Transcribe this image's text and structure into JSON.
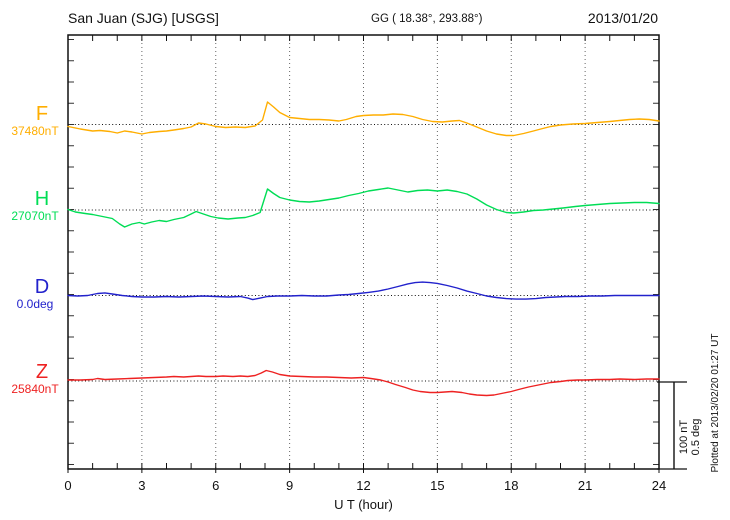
{
  "header": {
    "station_title": "San Juan (SJG)  [USGS]",
    "coordinates": "GG ( 18.38°, 293.88°)",
    "date": "2013/01/20"
  },
  "side": {
    "plotted_at": "Plotted at 2013/02/20 01:27 UT",
    "scale_bar": {
      "nt_label": "100 nT",
      "deg_label": "0.5 deg"
    }
  },
  "channels": [
    {
      "letter": "F",
      "value_label": "37480nT",
      "color": "#FFAE00"
    },
    {
      "letter": "H",
      "value_label": "27070nT",
      "color": "#00DD55"
    },
    {
      "letter": "D",
      "value_label": "0.0deg",
      "color": "#2222CC"
    },
    {
      "letter": "Z",
      "value_label": "25840nT",
      "color": "#EE2222"
    }
  ],
  "chart_data": {
    "type": "line",
    "title": "San Juan (SJG) [USGS] magnetogram 2013/01/20",
    "xlabel": "U T (hour)",
    "x_range": [
      0,
      24
    ],
    "x_ticks": [
      0,
      3,
      6,
      9,
      12,
      15,
      18,
      21,
      24
    ],
    "x_minor_tick_every_hours": 1,
    "y_minor_tick_nT": 25,
    "grid": "dotted vertical gridlines every 3 hours; dotted horizontal baseline per channel",
    "scale_division": {
      "nT": 100,
      "deg": 0.5
    },
    "series": [
      {
        "name": "F",
        "unit": "nT",
        "baseline_value": 37480,
        "color": "#FFAE00",
        "points": [
          [
            0,
            -2.4
          ],
          [
            0.5,
            -5.3
          ],
          [
            1,
            -7.6
          ],
          [
            1.3,
            -7.1
          ],
          [
            1.7,
            -8.2
          ],
          [
            2,
            -10
          ],
          [
            2.3,
            -7.6
          ],
          [
            2.6,
            -8.8
          ],
          [
            3,
            -11.2
          ],
          [
            3.3,
            -9.4
          ],
          [
            3.7,
            -8.2
          ],
          [
            4,
            -7.6
          ],
          [
            4.3,
            -6.5
          ],
          [
            4.7,
            -4.7
          ],
          [
            5,
            -2.9
          ],
          [
            5.3,
            1.8
          ],
          [
            5.6,
            0.6
          ],
          [
            6,
            -2.4
          ],
          [
            6.4,
            -3.5
          ],
          [
            6.8,
            -2.9
          ],
          [
            7.2,
            -3.5
          ],
          [
            7.6,
            -1.8
          ],
          [
            7.9,
            5.3
          ],
          [
            8.1,
            26.5
          ],
          [
            8.35,
            20.6
          ],
          [
            8.6,
            14.1
          ],
          [
            9,
            8.2
          ],
          [
            9.4,
            7.1
          ],
          [
            9.8,
            5.9
          ],
          [
            10.2,
            5.9
          ],
          [
            10.6,
            5.3
          ],
          [
            11,
            4.1
          ],
          [
            11.3,
            5.9
          ],
          [
            11.7,
            9.4
          ],
          [
            12,
            10.6
          ],
          [
            12.4,
            11.2
          ],
          [
            12.8,
            11.2
          ],
          [
            13.2,
            12.4
          ],
          [
            13.6,
            11.8
          ],
          [
            14,
            9.4
          ],
          [
            14.4,
            5.9
          ],
          [
            14.8,
            3.5
          ],
          [
            15.2,
            2.9
          ],
          [
            15.6,
            4.1
          ],
          [
            15.9,
            4.7
          ],
          [
            16.2,
            1.8
          ],
          [
            16.6,
            -2.9
          ],
          [
            17,
            -7.6
          ],
          [
            17.4,
            -11.2
          ],
          [
            17.8,
            -12.9
          ],
          [
            18.1,
            -12.9
          ],
          [
            18.5,
            -10.6
          ],
          [
            18.9,
            -7.6
          ],
          [
            19.2,
            -5.3
          ],
          [
            19.6,
            -2.4
          ],
          [
            20,
            -0.6
          ],
          [
            20.5,
            0.6
          ],
          [
            21,
            1.2
          ],
          [
            21.5,
            2.4
          ],
          [
            22,
            3.5
          ],
          [
            22.4,
            4.7
          ],
          [
            22.8,
            5.9
          ],
          [
            23.2,
            6.5
          ],
          [
            23.6,
            5.9
          ],
          [
            24,
            4.1
          ]
        ]
      },
      {
        "name": "H",
        "unit": "nT",
        "baseline_value": 27070,
        "color": "#00DD55",
        "points": [
          [
            0,
            0.6
          ],
          [
            0.3,
            -2.4
          ],
          [
            0.7,
            -4.1
          ],
          [
            1,
            -5.3
          ],
          [
            1.4,
            -7.6
          ],
          [
            1.8,
            -10
          ],
          [
            2.1,
            -16.5
          ],
          [
            2.3,
            -20
          ],
          [
            2.6,
            -16.5
          ],
          [
            2.9,
            -14.7
          ],
          [
            3.1,
            -16.5
          ],
          [
            3.4,
            -14.1
          ],
          [
            3.7,
            -12.4
          ],
          [
            4,
            -13.5
          ],
          [
            4.3,
            -11.2
          ],
          [
            4.7,
            -8.8
          ],
          [
            5,
            -4.7
          ],
          [
            5.2,
            -1.8
          ],
          [
            5.5,
            -4.7
          ],
          [
            5.8,
            -7.6
          ],
          [
            6.1,
            -9.4
          ],
          [
            6.5,
            -10.6
          ],
          [
            6.9,
            -9.4
          ],
          [
            7.2,
            -8.8
          ],
          [
            7.5,
            -6.5
          ],
          [
            7.8,
            -2.9
          ],
          [
            8.1,
            24.7
          ],
          [
            8.35,
            19.4
          ],
          [
            8.6,
            14.7
          ],
          [
            9,
            11.8
          ],
          [
            9.4,
            10
          ],
          [
            9.8,
            9.4
          ],
          [
            10.2,
            10.6
          ],
          [
            10.6,
            12.4
          ],
          [
            11,
            14.1
          ],
          [
            11.4,
            17.1
          ],
          [
            11.8,
            19.4
          ],
          [
            12.2,
            22.4
          ],
          [
            12.6,
            24.1
          ],
          [
            13,
            25.9
          ],
          [
            13.4,
            23.5
          ],
          [
            13.8,
            21.2
          ],
          [
            14.2,
            22.9
          ],
          [
            14.6,
            23.5
          ],
          [
            15,
            22.4
          ],
          [
            15.4,
            23.5
          ],
          [
            15.8,
            21.8
          ],
          [
            16.2,
            18.8
          ],
          [
            16.6,
            12.9
          ],
          [
            17,
            5.9
          ],
          [
            17.4,
            0.6
          ],
          [
            17.8,
            -2.9
          ],
          [
            18.1,
            -3.5
          ],
          [
            18.5,
            -2.4
          ],
          [
            18.9,
            -0.6
          ],
          [
            19.3,
            0
          ],
          [
            19.7,
            1.2
          ],
          [
            20.1,
            2.4
          ],
          [
            20.6,
            4.1
          ],
          [
            21,
            5.3
          ],
          [
            21.5,
            6.5
          ],
          [
            22,
            7.6
          ],
          [
            22.5,
            8.2
          ],
          [
            23,
            8.8
          ],
          [
            23.5,
            8.8
          ],
          [
            24,
            7.6
          ]
        ]
      },
      {
        "name": "D",
        "unit": "deg",
        "baseline_value": 0.0,
        "color": "#2222CC",
        "points": [
          [
            0,
            0
          ],
          [
            0.4,
            -0.003
          ],
          [
            0.8,
            0
          ],
          [
            1.2,
            0.012
          ],
          [
            1.5,
            0.015
          ],
          [
            1.8,
            0.009
          ],
          [
            2.2,
            0
          ],
          [
            2.6,
            -0.006
          ],
          [
            3,
            -0.009
          ],
          [
            3.5,
            -0.009
          ],
          [
            4,
            -0.006
          ],
          [
            4.5,
            -0.009
          ],
          [
            5,
            -0.006
          ],
          [
            5.5,
            -0.003
          ],
          [
            6,
            -0.006
          ],
          [
            6.5,
            -0.009
          ],
          [
            7,
            -0.006
          ],
          [
            7.3,
            -0.015
          ],
          [
            7.5,
            -0.024
          ],
          [
            7.8,
            -0.015
          ],
          [
            8.1,
            -0.006
          ],
          [
            8.5,
            -0.003
          ],
          [
            9,
            -0.003
          ],
          [
            9.5,
            0
          ],
          [
            10,
            -0.003
          ],
          [
            10.5,
            -0.003
          ],
          [
            11,
            0.003
          ],
          [
            11.4,
            0.006
          ],
          [
            11.8,
            0.012
          ],
          [
            12.2,
            0.018
          ],
          [
            12.6,
            0.026
          ],
          [
            13,
            0.038
          ],
          [
            13.4,
            0.053
          ],
          [
            13.8,
            0.068
          ],
          [
            14.1,
            0.076
          ],
          [
            14.4,
            0.079
          ],
          [
            14.7,
            0.076
          ],
          [
            15,
            0.071
          ],
          [
            15.4,
            0.059
          ],
          [
            15.8,
            0.044
          ],
          [
            16.2,
            0.026
          ],
          [
            16.6,
            0.012
          ],
          [
            17,
            -0.003
          ],
          [
            17.4,
            -0.012
          ],
          [
            17.8,
            -0.018
          ],
          [
            18.2,
            -0.021
          ],
          [
            18.6,
            -0.021
          ],
          [
            19,
            -0.018
          ],
          [
            19.4,
            -0.012
          ],
          [
            19.8,
            -0.009
          ],
          [
            20.2,
            -0.006
          ],
          [
            20.7,
            -0.006
          ],
          [
            21.2,
            -0.003
          ],
          [
            21.7,
            -0.003
          ],
          [
            22.2,
            0
          ],
          [
            22.7,
            0
          ],
          [
            23.2,
            0
          ],
          [
            23.6,
            0
          ],
          [
            24,
            0
          ]
        ]
      },
      {
        "name": "Z",
        "unit": "nT",
        "baseline_value": 25840,
        "color": "#EE2222",
        "points": [
          [
            0,
            1.2
          ],
          [
            0.5,
            1.2
          ],
          [
            1,
            1.8
          ],
          [
            1.2,
            2.9
          ],
          [
            1.5,
            1.8
          ],
          [
            2,
            2.4
          ],
          [
            2.5,
            2.9
          ],
          [
            3,
            3.5
          ],
          [
            3.5,
            4.1
          ],
          [
            4,
            4.7
          ],
          [
            4.3,
            5.3
          ],
          [
            4.7,
            4.7
          ],
          [
            5,
            5.3
          ],
          [
            5.3,
            5.9
          ],
          [
            5.6,
            5.3
          ],
          [
            6,
            5.3
          ],
          [
            6.3,
            5.9
          ],
          [
            6.7,
            5.3
          ],
          [
            7,
            5.9
          ],
          [
            7.3,
            5.3
          ],
          [
            7.6,
            6.5
          ],
          [
            7.85,
            9.4
          ],
          [
            8.05,
            12.4
          ],
          [
            8.3,
            10.6
          ],
          [
            8.6,
            7.6
          ],
          [
            9,
            5.9
          ],
          [
            9.5,
            5.3
          ],
          [
            10,
            4.7
          ],
          [
            10.5,
            4.7
          ],
          [
            11,
            4.1
          ],
          [
            11.5,
            3.5
          ],
          [
            12,
            4.1
          ],
          [
            12.3,
            2.9
          ],
          [
            12.7,
            1.2
          ],
          [
            13,
            -1.2
          ],
          [
            13.3,
            -4.1
          ],
          [
            13.7,
            -7.6
          ],
          [
            14,
            -10.6
          ],
          [
            14.3,
            -12.4
          ],
          [
            14.7,
            -13.5
          ],
          [
            15,
            -13.5
          ],
          [
            15.3,
            -12.9
          ],
          [
            15.6,
            -12.4
          ],
          [
            16,
            -13.5
          ],
          [
            16.3,
            -15.3
          ],
          [
            16.6,
            -16.5
          ],
          [
            17,
            -17.1
          ],
          [
            17.3,
            -16.5
          ],
          [
            17.6,
            -14.7
          ],
          [
            18,
            -12.4
          ],
          [
            18.3,
            -10
          ],
          [
            18.7,
            -7.1
          ],
          [
            19,
            -5.3
          ],
          [
            19.3,
            -3.5
          ],
          [
            19.6,
            -1.8
          ],
          [
            20,
            -0.6
          ],
          [
            20.3,
            0.6
          ],
          [
            20.7,
            1.2
          ],
          [
            21,
            1.2
          ],
          [
            21.5,
            1.8
          ],
          [
            22,
            1.8
          ],
          [
            22.4,
            2.4
          ],
          [
            23,
            1.8
          ],
          [
            23.5,
            2.4
          ],
          [
            24,
            2.4
          ]
        ]
      }
    ]
  }
}
